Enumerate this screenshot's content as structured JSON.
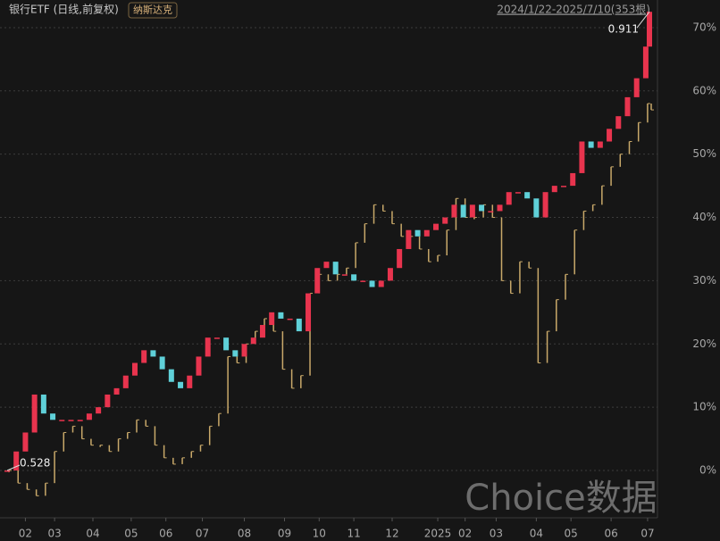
{
  "chart_data": {
    "type": "candlestick",
    "subtitle": "2024/1/22-2025/7/10(353根)",
    "watermark": "Choice数据",
    "annotations": [
      {
        "text": "0.911",
        "x": 352,
        "y": 72.5
      },
      {
        "text": "0.528",
        "x": 0,
        "y": 0
      }
    ],
    "x": [
      0,
      5,
      10,
      15,
      20,
      25,
      30,
      35,
      40,
      45,
      50,
      55,
      60,
      65,
      70,
      75,
      80,
      85,
      90,
      95,
      100,
      105,
      110,
      115,
      120,
      125,
      130,
      135,
      140,
      145,
      150,
      155,
      160,
      165,
      170,
      175,
      180,
      185,
      190,
      195,
      200,
      205,
      210,
      215,
      220,
      225,
      230,
      235,
      240,
      245,
      250,
      255,
      260,
      265,
      270,
      275,
      280,
      285,
      290,
      295,
      300,
      305,
      310,
      315,
      320,
      325,
      330,
      335,
      340,
      345,
      350,
      352
    ],
    "xlim": [
      0,
      352
    ],
    "xticks": [
      {
        "value": 10,
        "label": "02"
      },
      {
        "value": 26,
        "label": "03"
      },
      {
        "value": 47,
        "label": "04"
      },
      {
        "value": 68,
        "label": "05"
      },
      {
        "value": 87,
        "label": "06"
      },
      {
        "value": 107,
        "label": "07"
      },
      {
        "value": 130,
        "label": "08"
      },
      {
        "value": 152,
        "label": "09"
      },
      {
        "value": 171,
        "label": "10"
      },
      {
        "value": 190,
        "label": "11"
      },
      {
        "value": 211,
        "label": "12"
      },
      {
        "value": 236,
        "label": "2025"
      },
      {
        "value": 251,
        "label": "02"
      },
      {
        "value": 268,
        "label": "03"
      },
      {
        "value": 290,
        "label": "04"
      },
      {
        "value": 309,
        "label": "05"
      },
      {
        "value": 331,
        "label": "06"
      },
      {
        "value": 351,
        "label": "07"
      }
    ],
    "ylim": [
      -7,
      74
    ],
    "yticks": [
      {
        "value": 0,
        "label": "0%"
      },
      {
        "value": 10,
        "label": "10%"
      },
      {
        "value": 20,
        "label": "20%"
      },
      {
        "value": 30,
        "label": "30%"
      },
      {
        "value": 40,
        "label": "40%"
      },
      {
        "value": 50,
        "label": "50%"
      },
      {
        "value": 60,
        "label": "60%"
      },
      {
        "value": 70,
        "label": "70%"
      }
    ],
    "grid": true,
    "series": [
      {
        "name": "银行ETF (日线,前复权)",
        "color": "#e8344e",
        "down_color": "#5fd0d8",
        "values": [
          0,
          3,
          6,
          12,
          9,
          8,
          8,
          8,
          8,
          9,
          10,
          12,
          13,
          15,
          17,
          19,
          18,
          16,
          14,
          13,
          15,
          18,
          21,
          21,
          19,
          18,
          20,
          21,
          23,
          25,
          24,
          24,
          22,
          28,
          32,
          33,
          31,
          31,
          30,
          30,
          29,
          30,
          32,
          35,
          38,
          37,
          38,
          39,
          40,
          42,
          40,
          42,
          41,
          41,
          42,
          44,
          44,
          43,
          40,
          44,
          45,
          45,
          47,
          52,
          51,
          52,
          54,
          56,
          59,
          62,
          67,
          72.5
        ]
      },
      {
        "name": "纳斯达克",
        "color": "#c9a96a",
        "values": [
          0,
          -2,
          -3,
          -4,
          -2,
          3,
          6,
          7,
          5,
          4,
          4,
          3,
          5,
          6,
          8,
          7,
          4,
          2,
          1,
          2,
          3,
          4,
          7,
          9,
          18,
          17,
          20,
          22,
          24,
          22,
          16,
          13,
          15,
          28,
          31,
          30,
          31,
          32,
          36,
          39,
          42,
          41,
          39,
          37,
          37,
          35,
          33,
          34,
          38,
          43,
          40,
          40,
          42,
          40,
          30,
          28,
          33,
          32,
          17,
          22,
          27,
          31,
          38,
          41,
          42,
          45,
          48,
          50,
          52,
          55,
          58,
          57
        ]
      }
    ]
  }
}
